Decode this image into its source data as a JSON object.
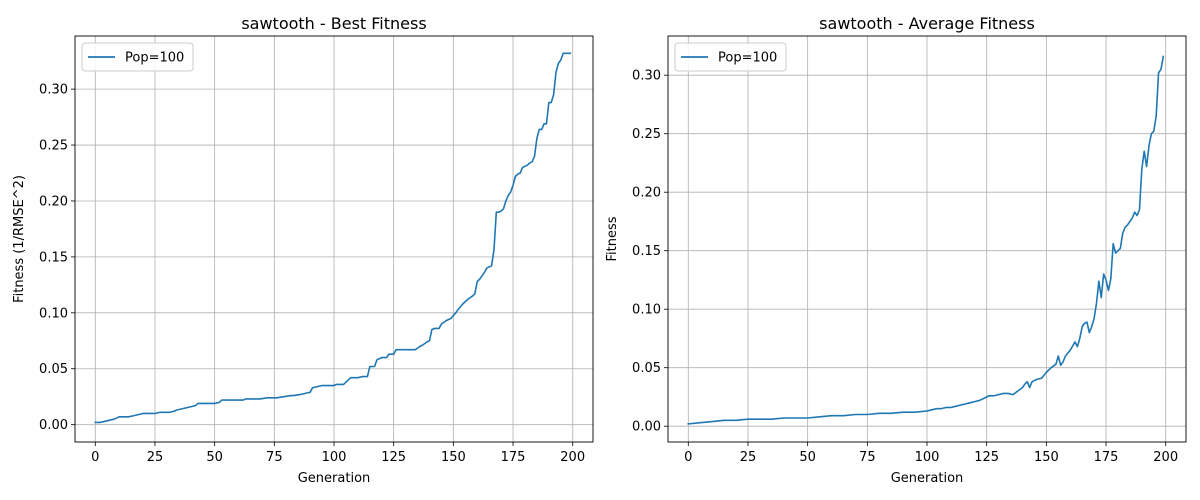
{
  "chart_data": [
    {
      "type": "line",
      "title": "sawtooth - Best Fitness",
      "xlabel": "Generation",
      "ylabel": "Fitness (1/RMSE^2)",
      "xlim": [
        -8.5,
        208.5
      ],
      "ylim": [
        -0.0155,
        0.3475
      ],
      "xticks": [
        0,
        25,
        50,
        75,
        100,
        125,
        150,
        175,
        200
      ],
      "xtick_labels": [
        "0",
        "25",
        "50",
        "75",
        "100",
        "125",
        "150",
        "175",
        "200"
      ],
      "yticks": [
        0.0,
        0.05,
        0.1,
        0.15,
        0.2,
        0.25,
        0.3
      ],
      "ytick_labels": [
        "0.00",
        "0.05",
        "0.10",
        "0.15",
        "0.20",
        "0.25",
        "0.30"
      ],
      "grid": true,
      "legend_position": "top-left",
      "series": [
        {
          "name": "Pop=100",
          "color": "#1f77b4",
          "x": [
            0,
            2,
            4,
            6,
            8,
            9,
            10,
            12,
            14,
            16,
            18,
            20,
            22,
            24,
            25,
            27,
            29,
            31,
            33,
            34,
            36,
            38,
            40,
            42,
            43,
            45,
            48,
            50,
            52,
            53,
            56,
            59,
            62,
            63,
            66,
            69,
            72,
            73,
            76,
            79,
            82,
            83,
            86,
            88,
            90,
            91,
            93,
            95,
            98,
            100,
            101,
            104,
            105,
            107,
            110,
            112,
            114,
            115,
            117,
            118,
            120,
            122,
            123,
            125,
            126,
            128,
            130,
            132,
            134,
            136,
            137,
            139,
            140,
            141,
            142,
            144,
            145,
            147,
            149,
            151,
            152,
            154,
            156,
            158,
            159,
            160,
            161,
            162,
            163,
            164,
            165,
            166,
            167,
            168,
            169,
            170,
            171,
            172,
            173,
            174,
            175,
            176,
            177,
            178,
            179,
            180,
            181,
            182,
            183,
            184,
            185,
            186,
            187,
            188,
            189,
            190,
            191,
            192,
            193,
            194,
            195,
            196,
            197,
            198,
            199
          ],
          "values": [
            0.002,
            0.002,
            0.003,
            0.004,
            0.005,
            0.006,
            0.007,
            0.007,
            0.007,
            0.008,
            0.009,
            0.01,
            0.01,
            0.01,
            0.01,
            0.011,
            0.011,
            0.011,
            0.012,
            0.013,
            0.014,
            0.015,
            0.016,
            0.017,
            0.019,
            0.019,
            0.019,
            0.019,
            0.02,
            0.022,
            0.022,
            0.022,
            0.022,
            0.023,
            0.023,
            0.023,
            0.024,
            0.024,
            0.024,
            0.025,
            0.026,
            0.026,
            0.027,
            0.028,
            0.029,
            0.033,
            0.034,
            0.035,
            0.035,
            0.035,
            0.036,
            0.036,
            0.038,
            0.042,
            0.042,
            0.043,
            0.043,
            0.052,
            0.052,
            0.058,
            0.06,
            0.06,
            0.063,
            0.063,
            0.067,
            0.067,
            0.067,
            0.067,
            0.067,
            0.07,
            0.071,
            0.074,
            0.075,
            0.085,
            0.086,
            0.086,
            0.09,
            0.093,
            0.095,
            0.1,
            0.103,
            0.108,
            0.112,
            0.115,
            0.117,
            0.128,
            0.13,
            0.133,
            0.136,
            0.14,
            0.141,
            0.142,
            0.156,
            0.19,
            0.19,
            0.191,
            0.193,
            0.2,
            0.205,
            0.208,
            0.214,
            0.222,
            0.224,
            0.225,
            0.23,
            0.231,
            0.232,
            0.234,
            0.235,
            0.24,
            0.256,
            0.264,
            0.264,
            0.269,
            0.269,
            0.288,
            0.288,
            0.295,
            0.315,
            0.323,
            0.326,
            0.332,
            0.332,
            0.332,
            0.332
          ]
        }
      ]
    },
    {
      "type": "line",
      "title": "sawtooth - Average Fitness",
      "xlabel": "Generation",
      "ylabel": "Fitness",
      "xlim": [
        -8.5,
        208.5
      ],
      "ylim": [
        -0.0135,
        0.3335
      ],
      "xticks": [
        0,
        25,
        50,
        75,
        100,
        125,
        150,
        175,
        200
      ],
      "xtick_labels": [
        "0",
        "25",
        "50",
        "75",
        "100",
        "125",
        "150",
        "175",
        "200"
      ],
      "yticks": [
        0.0,
        0.05,
        0.1,
        0.15,
        0.2,
        0.25,
        0.3
      ],
      "ytick_labels": [
        "0.00",
        "0.05",
        "0.10",
        "0.15",
        "0.20",
        "0.25",
        "0.30"
      ],
      "grid": true,
      "legend_position": "top-left",
      "series": [
        {
          "name": "Pop=100",
          "color": "#1f77b4",
          "x": [
            0,
            5,
            10,
            15,
            20,
            25,
            30,
            35,
            40,
            45,
            50,
            55,
            60,
            65,
            70,
            75,
            80,
            85,
            90,
            95,
            100,
            102,
            104,
            106,
            108,
            110,
            112,
            114,
            116,
            118,
            120,
            122,
            124,
            126,
            128,
            130,
            132,
            134,
            136,
            138,
            140,
            141,
            142,
            143,
            144,
            145,
            146,
            148,
            150,
            152,
            154,
            155,
            156,
            157,
            158,
            160,
            162,
            163,
            164,
            165,
            166,
            167,
            168,
            169,
            170,
            171,
            172,
            173,
            174,
            175,
            176,
            177,
            178,
            179,
            180,
            181,
            182,
            183,
            184,
            185,
            186,
            187,
            188,
            189,
            190,
            191,
            192,
            193,
            194,
            195,
            196,
            197,
            198,
            199
          ],
          "values": [
            0.002,
            0.003,
            0.004,
            0.005,
            0.005,
            0.006,
            0.006,
            0.006,
            0.007,
            0.007,
            0.007,
            0.008,
            0.009,
            0.009,
            0.01,
            0.01,
            0.011,
            0.011,
            0.012,
            0.012,
            0.013,
            0.014,
            0.015,
            0.015,
            0.016,
            0.016,
            0.017,
            0.018,
            0.019,
            0.02,
            0.021,
            0.022,
            0.024,
            0.026,
            0.026,
            0.027,
            0.028,
            0.028,
            0.027,
            0.03,
            0.033,
            0.036,
            0.038,
            0.033,
            0.038,
            0.039,
            0.04,
            0.041,
            0.046,
            0.05,
            0.053,
            0.06,
            0.052,
            0.055,
            0.06,
            0.065,
            0.072,
            0.068,
            0.075,
            0.085,
            0.088,
            0.089,
            0.08,
            0.085,
            0.092,
            0.105,
            0.124,
            0.11,
            0.13,
            0.125,
            0.116,
            0.126,
            0.156,
            0.148,
            0.15,
            0.152,
            0.165,
            0.17,
            0.172,
            0.175,
            0.178,
            0.183,
            0.18,
            0.185,
            0.22,
            0.235,
            0.222,
            0.24,
            0.25,
            0.252,
            0.265,
            0.302,
            0.305,
            0.316
          ]
        }
      ]
    }
  ]
}
